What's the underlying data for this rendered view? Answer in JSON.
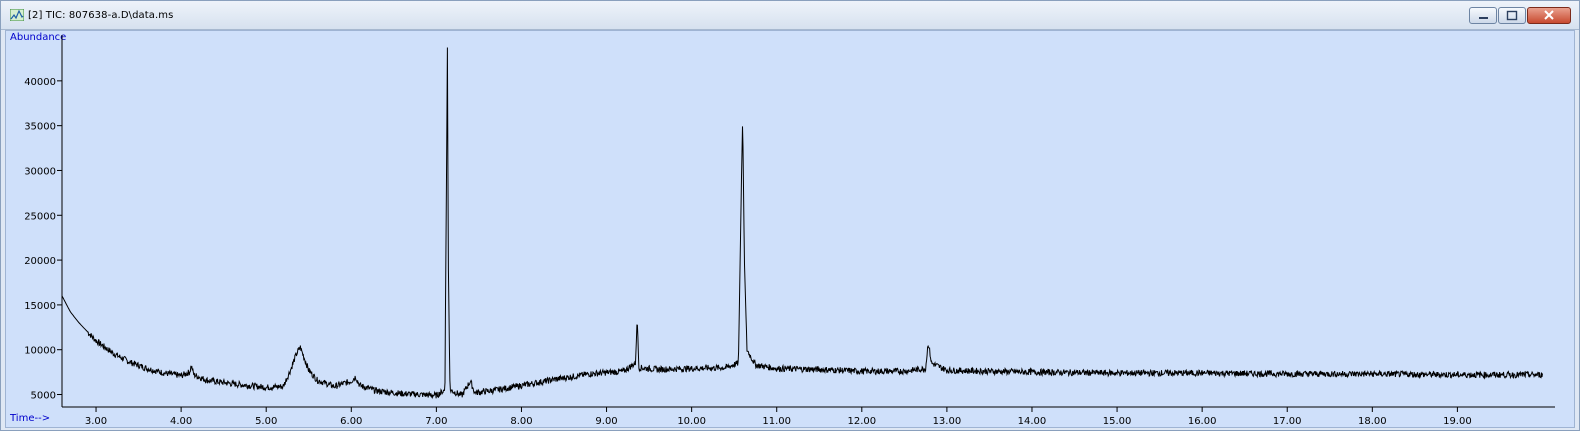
{
  "window": {
    "title": "[2] TIC: 807638-a.D\\data.ms",
    "icon": "chromatogram-app-icon",
    "buttons": [
      "minimize-icon",
      "restore-icon",
      "close-icon"
    ]
  },
  "chart_data": {
    "type": "line",
    "ylabel": "Abundance",
    "xlabel": "Time-->",
    "xlim": [
      2.6,
      20.1
    ],
    "ylim": [
      4500,
      44000
    ],
    "y_ticks": [
      5000,
      10000,
      15000,
      20000,
      25000,
      30000,
      35000,
      40000
    ],
    "y_tick_labels": [
      "5000",
      "10000",
      "15000",
      "20000",
      "25000",
      "30000",
      "35000",
      "40000"
    ],
    "x_ticks": [
      3,
      4,
      5,
      6,
      7,
      8,
      9,
      10,
      11,
      12,
      13,
      14,
      15,
      16,
      17,
      18,
      19
    ],
    "x_tick_labels": [
      "3.00",
      "4.00",
      "5.00",
      "6.00",
      "7.00",
      "8.00",
      "9.00",
      "10.00",
      "11.00",
      "12.00",
      "13.00",
      "14.00",
      "15.00",
      "16.00",
      "17.00",
      "18.00",
      "19.00"
    ],
    "series": [
      {
        "values": [
          [
            2.6,
            16000
          ],
          [
            2.7,
            14200
          ],
          [
            2.8,
            13000
          ],
          [
            2.9,
            12000
          ],
          [
            3.0,
            11000
          ],
          [
            3.2,
            9600
          ],
          [
            3.4,
            8600
          ],
          [
            3.6,
            7900
          ],
          [
            3.8,
            7400
          ],
          [
            4.0,
            7100
          ],
          [
            4.1,
            7500
          ],
          [
            4.12,
            8200
          ],
          [
            4.15,
            7200
          ],
          [
            4.3,
            6600
          ],
          [
            4.6,
            6200
          ],
          [
            5.0,
            5800
          ],
          [
            5.2,
            5900
          ],
          [
            5.28,
            7600
          ],
          [
            5.35,
            9400
          ],
          [
            5.4,
            10300
          ],
          [
            5.45,
            9000
          ],
          [
            5.5,
            7700
          ],
          [
            5.6,
            6600
          ],
          [
            5.8,
            5900
          ],
          [
            6.0,
            6500
          ],
          [
            6.05,
            7000
          ],
          [
            6.1,
            6000
          ],
          [
            6.3,
            5400
          ],
          [
            6.6,
            5100
          ],
          [
            7.0,
            4900
          ],
          [
            7.1,
            5500
          ],
          [
            7.12,
            30000
          ],
          [
            7.13,
            44000
          ],
          [
            7.14,
            20000
          ],
          [
            7.16,
            5500
          ],
          [
            7.3,
            4900
          ],
          [
            7.4,
            6500
          ],
          [
            7.45,
            5200
          ],
          [
            7.7,
            5500
          ],
          [
            8.0,
            6000
          ],
          [
            8.4,
            6700
          ],
          [
            8.8,
            7300
          ],
          [
            9.2,
            7600
          ],
          [
            9.34,
            8500
          ],
          [
            9.36,
            13500
          ],
          [
            9.38,
            8000
          ],
          [
            9.6,
            7800
          ],
          [
            10.0,
            7900
          ],
          [
            10.4,
            8000
          ],
          [
            10.55,
            8500
          ],
          [
            10.58,
            26000
          ],
          [
            10.6,
            35800
          ],
          [
            10.62,
            20000
          ],
          [
            10.65,
            10000
          ],
          [
            10.75,
            8300
          ],
          [
            11.0,
            7900
          ],
          [
            11.5,
            7800
          ],
          [
            12.0,
            7600
          ],
          [
            12.5,
            7600
          ],
          [
            12.75,
            7900
          ],
          [
            12.78,
            10800
          ],
          [
            12.82,
            8500
          ],
          [
            13.0,
            7700
          ],
          [
            14.0,
            7500
          ],
          [
            15.0,
            7400
          ],
          [
            16.0,
            7400
          ],
          [
            17.0,
            7300
          ],
          [
            18.0,
            7300
          ],
          [
            19.0,
            7200
          ],
          [
            20.0,
            7200
          ]
        ]
      }
    ],
    "colors": {
      "background": "#cfe0fa",
      "line": "#000000",
      "axis_title": "#0000cc"
    },
    "grid": false,
    "legend": "none"
  }
}
